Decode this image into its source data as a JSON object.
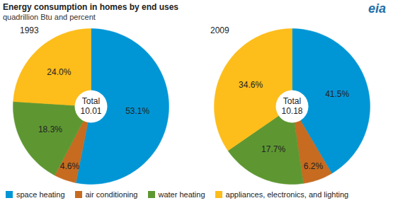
{
  "title": "Energy consumption in homes by end uses",
  "subtitle": "quadrillion Btu and percent",
  "logo": "eia",
  "chart_data": [
    {
      "type": "pie",
      "title": "1993",
      "categories": [
        "space heating",
        "air conditioning",
        "water heating",
        "appliances, electronics, and lighting"
      ],
      "values": [
        53.1,
        4.6,
        18.3,
        24
      ],
      "value_labels": [
        "53.1%",
        "4.6%",
        "18.3%",
        "24.0%"
      ],
      "colors": [
        "#0096d6",
        "#c66b20",
        "#5e9732",
        "#fdbd1a"
      ],
      "data_labels": true,
      "legend": "bottom",
      "total": {
        "label": "Total",
        "value": 10.01
      }
    },
    {
      "type": "pie",
      "title": "2009",
      "categories": [
        "space heating",
        "air conditioning",
        "water heating",
        "appliances, electronics, and lighting"
      ],
      "values": [
        41.5,
        6.2,
        17.7,
        34.6
      ],
      "value_labels": [
        "41.5%",
        "6.2%",
        "17.7%",
        "34.6%"
      ],
      "colors": [
        "#0096d6",
        "#c66b20",
        "#5e9732",
        "#fdbd1a"
      ],
      "data_labels": true,
      "legend": "bottom",
      "total": {
        "label": "Total",
        "value": 10.18
      }
    }
  ]
}
